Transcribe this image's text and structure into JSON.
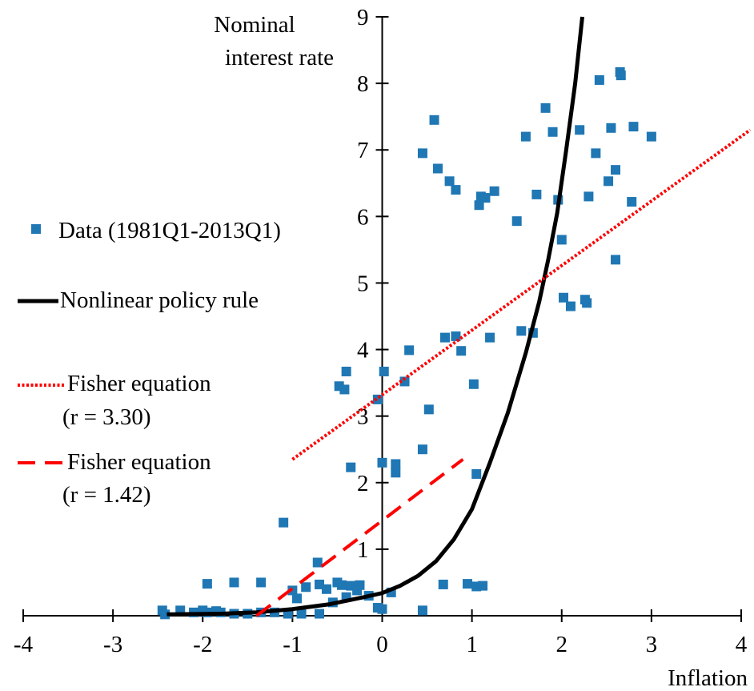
{
  "chart_data": {
    "type": "scatter",
    "xlabel": "Inflation",
    "ylabel_lines": [
      "Nominal",
      "interest rate"
    ],
    "xlim": [
      -4,
      4
    ],
    "ylim": [
      0,
      9
    ],
    "xticks": [
      "-4",
      "-3",
      "-2",
      "-1",
      "0",
      "1",
      "2",
      "3",
      "4"
    ],
    "yticks": [
      "1",
      "2",
      "3",
      "4",
      "5",
      "6",
      "7",
      "8",
      "9"
    ],
    "grid": false,
    "legend_position": "left",
    "series": [
      {
        "name": "Data (1981Q1-2013Q1)",
        "kind": "scatter",
        "color": "#1f77b4",
        "points": [
          [
            -2.45,
            0.08
          ],
          [
            -2.25,
            0.08
          ],
          [
            -2.1,
            0.05
          ],
          [
            -1.95,
            0.05
          ],
          [
            -1.8,
            0.05
          ],
          [
            -1.65,
            0.03
          ],
          [
            -1.5,
            0.03
          ],
          [
            -1.35,
            0.05
          ],
          [
            -1.2,
            0.05
          ],
          [
            -1.05,
            0.03
          ],
          [
            -0.9,
            0.03
          ],
          [
            -0.7,
            0.03
          ],
          [
            -2.42,
            0.02
          ],
          [
            -2.0,
            0.08
          ],
          [
            -1.85,
            0.07
          ],
          [
            -1.95,
            0.48
          ],
          [
            -1.65,
            0.5
          ],
          [
            -1.35,
            0.5
          ],
          [
            -1.1,
            1.4
          ],
          [
            -1.0,
            0.38
          ],
          [
            -0.95,
            0.26
          ],
          [
            -0.85,
            0.43
          ],
          [
            -0.72,
            0.8
          ],
          [
            -0.7,
            0.47
          ],
          [
            -0.62,
            0.4
          ],
          [
            -0.55,
            0.2
          ],
          [
            -0.5,
            0.5
          ],
          [
            -0.45,
            0.46
          ],
          [
            -0.4,
            0.28
          ],
          [
            -0.35,
            0.45
          ],
          [
            -0.28,
            0.38
          ],
          [
            -0.25,
            0.46
          ],
          [
            -0.15,
            0.3
          ],
          [
            -0.05,
            0.12
          ],
          [
            0.0,
            0.1
          ],
          [
            0.1,
            0.35
          ],
          [
            0.45,
            0.08
          ],
          [
            0.68,
            0.47
          ],
          [
            0.95,
            0.48
          ],
          [
            1.05,
            0.44
          ],
          [
            1.12,
            0.45
          ],
          [
            -0.48,
            3.45
          ],
          [
            -0.42,
            3.4
          ],
          [
            -0.4,
            3.67
          ],
          [
            -0.35,
            2.23
          ],
          [
            -0.05,
            3.25
          ],
          [
            0.02,
            3.67
          ],
          [
            0.0,
            2.3
          ],
          [
            0.15,
            2.15
          ],
          [
            0.15,
            2.28
          ],
          [
            0.25,
            3.52
          ],
          [
            0.3,
            3.99
          ],
          [
            0.45,
            2.5
          ],
          [
            0.52,
            3.1
          ],
          [
            0.7,
            4.18
          ],
          [
            0.82,
            4.2
          ],
          [
            0.88,
            3.98
          ],
          [
            1.02,
            3.48
          ],
          [
            1.05,
            2.13
          ],
          [
            0.45,
            6.95
          ],
          [
            0.58,
            7.45
          ],
          [
            0.62,
            6.72
          ],
          [
            0.75,
            6.53
          ],
          [
            0.82,
            6.4
          ],
          [
            1.08,
            6.17
          ],
          [
            1.1,
            6.3
          ],
          [
            1.15,
            6.28
          ],
          [
            1.25,
            6.38
          ],
          [
            1.5,
            5.93
          ],
          [
            1.6,
            7.2
          ],
          [
            1.72,
            6.33
          ],
          [
            1.82,
            7.63
          ],
          [
            1.9,
            7.27
          ],
          [
            1.96,
            6.25
          ],
          [
            2.0,
            5.65
          ],
          [
            2.02,
            4.78
          ],
          [
            2.1,
            4.65
          ],
          [
            2.2,
            7.3
          ],
          [
            2.26,
            4.75
          ],
          [
            2.28,
            4.7
          ],
          [
            2.3,
            6.3
          ],
          [
            2.38,
            6.95
          ],
          [
            2.42,
            8.05
          ],
          [
            2.52,
            6.53
          ],
          [
            2.55,
            7.33
          ],
          [
            2.6,
            5.35
          ],
          [
            2.6,
            6.7
          ],
          [
            2.65,
            8.17
          ],
          [
            2.66,
            8.12
          ],
          [
            2.78,
            6.22
          ],
          [
            2.8,
            7.35
          ],
          [
            3.0,
            7.2
          ],
          [
            1.55,
            4.28
          ],
          [
            1.68,
            4.25
          ],
          [
            1.2,
            4.18
          ]
        ]
      },
      {
        "name": "Nonlinear policy rule",
        "kind": "curve",
        "color": "#000000",
        "points": [
          [
            -2.4,
            0.02
          ],
          [
            -1.8,
            0.03
          ],
          [
            -1.4,
            0.05
          ],
          [
            -1.0,
            0.1
          ],
          [
            -0.6,
            0.17
          ],
          [
            -0.2,
            0.28
          ],
          [
            0.0,
            0.34
          ],
          [
            0.2,
            0.45
          ],
          [
            0.4,
            0.6
          ],
          [
            0.6,
            0.82
          ],
          [
            0.8,
            1.15
          ],
          [
            1.0,
            1.6
          ],
          [
            1.2,
            2.3
          ],
          [
            1.4,
            3.05
          ],
          [
            1.6,
            3.95
          ],
          [
            1.75,
            4.72
          ],
          [
            1.85,
            5.35
          ],
          [
            1.95,
            6.05
          ],
          [
            2.05,
            7.0
          ],
          [
            2.15,
            8.0
          ],
          [
            2.23,
            9.0
          ]
        ]
      },
      {
        "name_lines": [
          "Fisher equation",
          "(r = 3.30)"
        ],
        "kind": "line",
        "style": "dotted",
        "color": "#ff0000",
        "points": [
          [
            -1.0,
            2.35
          ],
          [
            4.1,
            7.3
          ]
        ]
      },
      {
        "name_lines": [
          "Fisher equation",
          "(r = 1.42)"
        ],
        "kind": "line",
        "style": "dashed",
        "color": "#ff0000",
        "points": [
          [
            -1.4,
            0.0
          ],
          [
            0.9,
            2.35
          ]
        ]
      }
    ]
  }
}
